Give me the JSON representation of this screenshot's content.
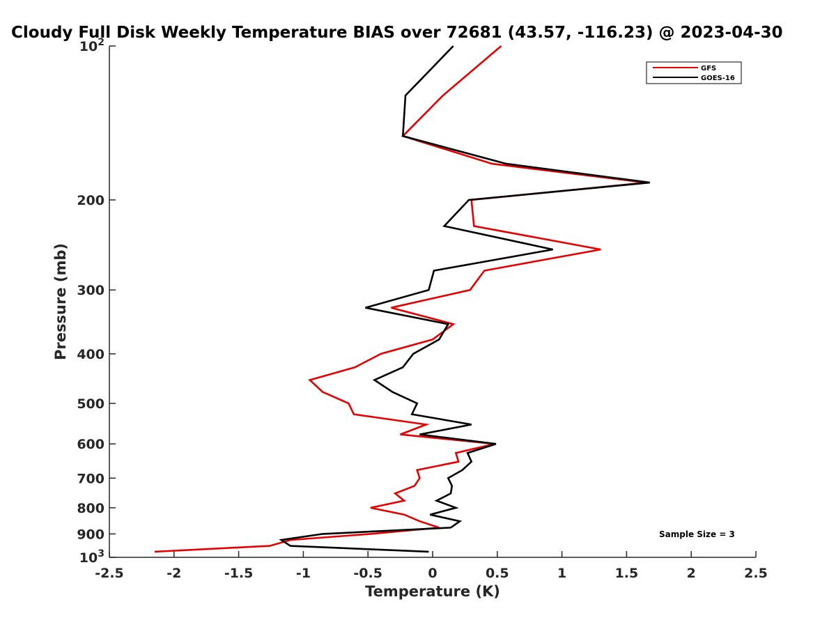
{
  "chart_data": {
    "type": "line",
    "title": "Cloudy Full Disk Weekly Temperature BIAS over 72681 (43.57, -116.23) @ 2023-04-30",
    "xlabel": "Temperature (K)",
    "ylabel": "Pressure (mb)",
    "xlim": [
      -2.5,
      2.5
    ],
    "ylim": [
      100,
      1000
    ],
    "y_scale": "log",
    "y_reversed": true,
    "grid": false,
    "legend_position": "top-right",
    "xticks": [
      {
        "value": -2.5,
        "label": "-2.5"
      },
      {
        "value": -2,
        "label": "-2"
      },
      {
        "value": -1.5,
        "label": "-1.5"
      },
      {
        "value": -1,
        "label": "-1"
      },
      {
        "value": -0.5,
        "label": "-0.5"
      },
      {
        "value": 0,
        "label": "0"
      },
      {
        "value": 0.5,
        "label": "0.5"
      },
      {
        "value": 1,
        "label": "1"
      },
      {
        "value": 1.5,
        "label": "1.5"
      },
      {
        "value": 2,
        "label": "2"
      },
      {
        "value": 2.5,
        "label": "2.5"
      }
    ],
    "yticks": [
      {
        "value": 100,
        "label": "10",
        "exp": "2"
      },
      {
        "value": 200,
        "label": "200"
      },
      {
        "value": 300,
        "label": "300"
      },
      {
        "value": 400,
        "label": "400"
      },
      {
        "value": 500,
        "label": "500"
      },
      {
        "value": 600,
        "label": "600"
      },
      {
        "value": 700,
        "label": "700"
      },
      {
        "value": 800,
        "label": "800"
      },
      {
        "value": 900,
        "label": "900"
      },
      {
        "value": 1000,
        "label": "10",
        "exp": "3"
      }
    ],
    "annotation": "Sample Size = 3",
    "series": [
      {
        "name": "GFS",
        "color": "#e60000",
        "points": [
          {
            "x": 0.53,
            "y": 100
          },
          {
            "x": 0.08,
            "y": 125
          },
          {
            "x": -0.23,
            "y": 150
          },
          {
            "x": 0.46,
            "y": 170
          },
          {
            "x": 1.65,
            "y": 185
          },
          {
            "x": 0.3,
            "y": 200
          },
          {
            "x": 0.32,
            "y": 225
          },
          {
            "x": 1.3,
            "y": 250
          },
          {
            "x": 0.4,
            "y": 275
          },
          {
            "x": 0.29,
            "y": 300
          },
          {
            "x": -0.32,
            "y": 325
          },
          {
            "x": 0.16,
            "y": 350
          },
          {
            "x": 0.0,
            "y": 375
          },
          {
            "x": -0.4,
            "y": 400
          },
          {
            "x": -0.6,
            "y": 425
          },
          {
            "x": -0.95,
            "y": 450
          },
          {
            "x": -0.85,
            "y": 475
          },
          {
            "x": -0.65,
            "y": 500
          },
          {
            "x": -0.61,
            "y": 525
          },
          {
            "x": -0.05,
            "y": 550
          },
          {
            "x": -0.25,
            "y": 575
          },
          {
            "x": 0.48,
            "y": 600
          },
          {
            "x": 0.18,
            "y": 625
          },
          {
            "x": 0.2,
            "y": 650
          },
          {
            "x": -0.12,
            "y": 675
          },
          {
            "x": -0.1,
            "y": 700
          },
          {
            "x": -0.14,
            "y": 725
          },
          {
            "x": -0.29,
            "y": 750
          },
          {
            "x": -0.22,
            "y": 775
          },
          {
            "x": -0.48,
            "y": 800
          },
          {
            "x": -0.22,
            "y": 825
          },
          {
            "x": -0.1,
            "y": 850
          },
          {
            "x": 0.05,
            "y": 875
          },
          {
            "x": -0.48,
            "y": 900
          },
          {
            "x": -1.1,
            "y": 925
          },
          {
            "x": -1.26,
            "y": 950
          },
          {
            "x": -2.15,
            "y": 975
          }
        ]
      },
      {
        "name": "GOES-16",
        "color": "#000000",
        "points": [
          {
            "x": 0.16,
            "y": 100
          },
          {
            "x": -0.21,
            "y": 125
          },
          {
            "x": -0.23,
            "y": 150
          },
          {
            "x": 0.57,
            "y": 170
          },
          {
            "x": 1.68,
            "y": 185
          },
          {
            "x": 0.28,
            "y": 200
          },
          {
            "x": 0.09,
            "y": 225
          },
          {
            "x": 0.93,
            "y": 250
          },
          {
            "x": 0.01,
            "y": 275
          },
          {
            "x": -0.03,
            "y": 300
          },
          {
            "x": -0.52,
            "y": 325
          },
          {
            "x": 0.12,
            "y": 350
          },
          {
            "x": 0.05,
            "y": 375
          },
          {
            "x": -0.15,
            "y": 400
          },
          {
            "x": -0.23,
            "y": 425
          },
          {
            "x": -0.45,
            "y": 450
          },
          {
            "x": -0.31,
            "y": 475
          },
          {
            "x": -0.12,
            "y": 500
          },
          {
            "x": -0.16,
            "y": 525
          },
          {
            "x": 0.3,
            "y": 550
          },
          {
            "x": -0.1,
            "y": 575
          },
          {
            "x": 0.49,
            "y": 600
          },
          {
            "x": 0.27,
            "y": 625
          },
          {
            "x": 0.3,
            "y": 650
          },
          {
            "x": 0.23,
            "y": 675
          },
          {
            "x": 0.12,
            "y": 700
          },
          {
            "x": 0.15,
            "y": 725
          },
          {
            "x": 0.14,
            "y": 750
          },
          {
            "x": 0.03,
            "y": 775
          },
          {
            "x": 0.18,
            "y": 800
          },
          {
            "x": -0.02,
            "y": 825
          },
          {
            "x": 0.21,
            "y": 850
          },
          {
            "x": 0.14,
            "y": 875
          },
          {
            "x": -0.85,
            "y": 900
          },
          {
            "x": -1.17,
            "y": 925
          },
          {
            "x": -1.1,
            "y": 950
          },
          {
            "x": -0.03,
            "y": 975
          }
        ]
      }
    ]
  }
}
